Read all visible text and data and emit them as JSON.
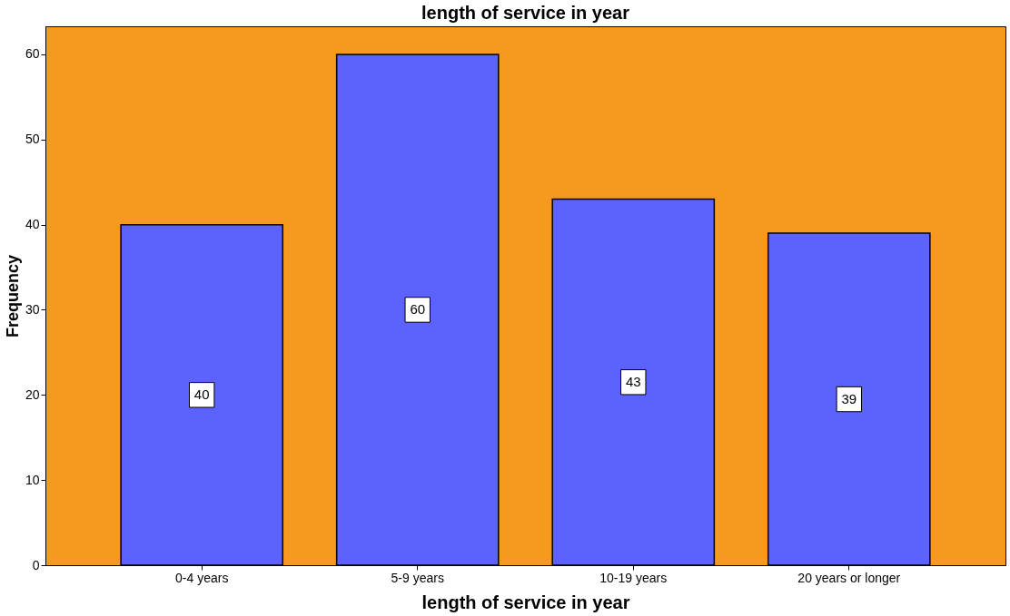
{
  "chart_data": {
    "type": "bar",
    "title": "length of service in year",
    "xlabel": "length of service in year",
    "ylabel": "Frequency",
    "categories": [
      "0-4 years",
      "5-9 years",
      "10-19 years",
      "20 years or longer"
    ],
    "values": [
      40,
      60,
      43,
      39
    ],
    "color": "#5c62fe",
    "ylim": [
      0,
      63.3
    ],
    "yticks": [
      0,
      10,
      20,
      30,
      40,
      50,
      60
    ],
    "grid": false,
    "data_labels": true
  }
}
